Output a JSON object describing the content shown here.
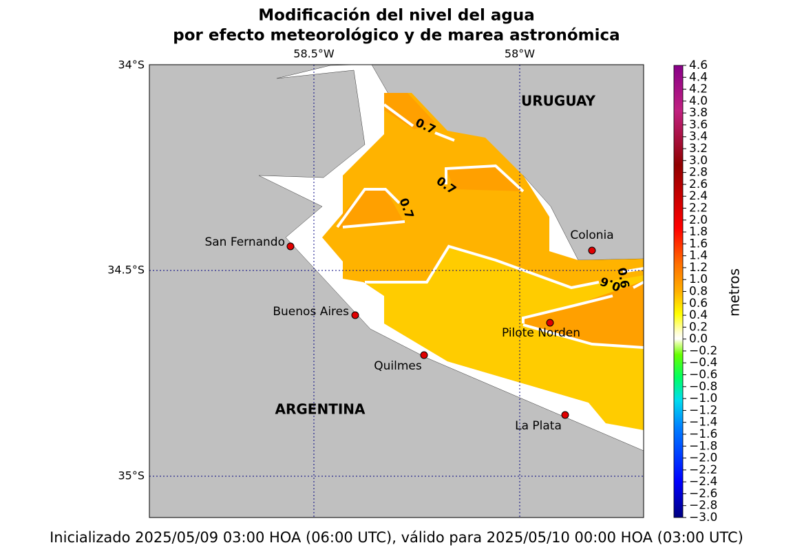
{
  "header": {
    "title_line1": "Modificación del nivel del agua",
    "title_line2": "por efecto meteorológico y de marea astronómica"
  },
  "map": {
    "longitude_labels": [
      "58.5°W",
      "58°W"
    ],
    "latitude_labels": [
      "34°S",
      "34.5°S",
      "35°S"
    ],
    "regions": [
      "URUGUAY",
      "ARGENTINA"
    ],
    "cities": [
      "San Fernando",
      "Buenos Aires",
      "Quilmes",
      "Colonia",
      "Pilote Norden",
      "La Plata"
    ],
    "contour_labels": [
      "0.7",
      "0.7",
      "0.7",
      "0.6",
      "0.6"
    ]
  },
  "colorbar": {
    "label": "metros",
    "range": [
      -3.0,
      4.6
    ],
    "ticks": [
      {
        "value": -3.0,
        "label": "−3.0"
      },
      {
        "value": -2.8,
        "label": "−2.8"
      },
      {
        "value": -2.6,
        "label": "−2.6"
      },
      {
        "value": -2.4,
        "label": "−2.4"
      },
      {
        "value": -2.2,
        "label": "−2.2"
      },
      {
        "value": -2.0,
        "label": "−2.0"
      },
      {
        "value": -1.8,
        "label": "−1.8"
      },
      {
        "value": -1.6,
        "label": "−1.6"
      },
      {
        "value": -1.4,
        "label": "−1.4"
      },
      {
        "value": -1.2,
        "label": "−1.2"
      },
      {
        "value": -1.0,
        "label": "−1.0"
      },
      {
        "value": -0.8,
        "label": "−0.8"
      },
      {
        "value": -0.6,
        "label": "−0.6"
      },
      {
        "value": -0.4,
        "label": "−0.4"
      },
      {
        "value": -0.2,
        "label": "−0.2"
      },
      {
        "value": 0,
        "label": "0.0"
      },
      0.2,
      0.4,
      0.6,
      0.8,
      {
        "value": 1,
        "label": "1.0"
      },
      1.2,
      1.4,
      1.6,
      1.8,
      {
        "value": 2,
        "label": "2.0"
      },
      2.2,
      2.4,
      2.6,
      2.8,
      {
        "value": 3,
        "label": "3.0"
      },
      3.2,
      3.4,
      3.6,
      3.8,
      {
        "value": 4,
        "label": "4.0"
      },
      4.2,
      4.4,
      4.6
    ]
  },
  "footer": "Inicializado 2025/05/09 03:00 HOA (06:00 UTC), válido para 2025/05/10 00:00 HOA (03:00 UTC)"
}
